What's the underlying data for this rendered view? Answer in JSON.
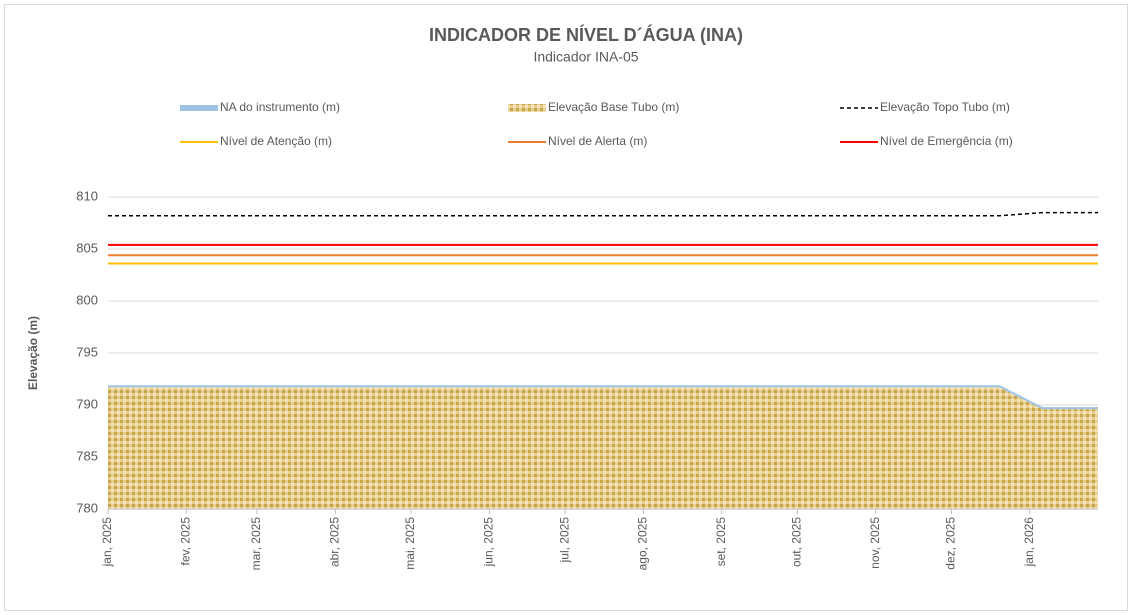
{
  "chart_data": {
    "type": "line",
    "title": "INDICADOR DE NÍVEL D´ÁGUA (INA)",
    "subtitle": "Indicador INA-05",
    "y_label": "Elevação (m)",
    "x": [
      0,
      353,
      370,
      392
    ],
    "xlim": [
      0,
      392
    ],
    "xticks": [
      {
        "value": 0,
        "label": "jan, 2025"
      },
      {
        "value": 31,
        "label": "fev, 2025"
      },
      {
        "value": 59,
        "label": "mar, 2025"
      },
      {
        "value": 90,
        "label": "abr, 2025"
      },
      {
        "value": 120,
        "label": "mai, 2025"
      },
      {
        "value": 151,
        "label": "jun, 2025"
      },
      {
        "value": 181,
        "label": "jul, 2025"
      },
      {
        "value": 212,
        "label": "ago, 2025"
      },
      {
        "value": 243,
        "label": "set, 2025"
      },
      {
        "value": 273,
        "label": "out, 2025"
      },
      {
        "value": 304,
        "label": "nov, 2025"
      },
      {
        "value": 334,
        "label": "dez, 2025"
      },
      {
        "value": 365,
        "label": "jan, 2026"
      }
    ],
    "ylim": [
      780,
      810
    ],
    "yticks": [
      780,
      785,
      790,
      795,
      800,
      805,
      810
    ],
    "grid": true,
    "series": [
      {
        "name": "NA do instrumento (m)",
        "color": "#9dc3e6",
        "style": "line",
        "values": [
          791.8,
          791.8,
          789.7,
          789.7
        ]
      },
      {
        "name": "Elevação Base Tubo (m)",
        "color": "#d9b55f",
        "style": "area",
        "values": [
          791.7,
          791.7,
          789.6,
          789.6
        ]
      },
      {
        "name": "Elevação Topo Tubo (m)",
        "color": "#000000",
        "style": "dashed",
        "values": [
          808.2,
          808.2,
          808.5,
          808.5
        ]
      },
      {
        "name": "Nível de Atenção (m)",
        "color": "#ffc000",
        "style": "line",
        "values": [
          803.6,
          803.6,
          803.6,
          803.6
        ]
      },
      {
        "name": "Nível de Alerta (m)",
        "color": "#ed7d31",
        "style": "line",
        "values": [
          804.4,
          804.4,
          804.4,
          804.4
        ]
      },
      {
        "name": "Nível de Emergência (m)",
        "color": "#ff0000",
        "style": "line",
        "values": [
          805.4,
          805.4,
          805.4,
          805.4
        ]
      }
    ]
  }
}
